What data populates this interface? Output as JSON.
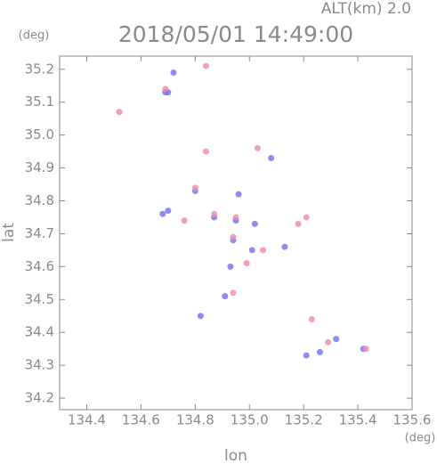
{
  "chart_data": {
    "type": "scatter",
    "title": "2018/05/01 14:49:00",
    "altitude_label": "ALT(km)  2.0",
    "y_unit": "(deg)",
    "x_unit": "(deg)",
    "x_label": "lon",
    "y_label": "lat",
    "xlim": [
      134.3,
      135.6
    ],
    "ylim": [
      34.165,
      35.24
    ],
    "xticks": [
      134.4,
      134.6,
      134.8,
      {
        "value": 135,
        "label": "135.0"
      },
      135.2,
      135.4,
      135.6
    ],
    "yticks": [
      34.2,
      34.3,
      34.4,
      34.5,
      34.6,
      34.7,
      34.8,
      34.9,
      {
        "value": 35,
        "label": "35.0"
      },
      35.1,
      35.2
    ],
    "series": [
      {
        "color": "#6f6ff0",
        "x": [
          134.69,
          134.72,
          134.7,
          134.8,
          134.96,
          134.7,
          134.87,
          134.95,
          135.02,
          134.94,
          135.01,
          135.13,
          134.93,
          134.91,
          134.82,
          135.21,
          135.26,
          135.32,
          135.42,
          135.08,
          134.68
        ],
        "values": [
          35.13,
          35.19,
          35.13,
          34.83,
          34.82,
          34.77,
          34.75,
          34.74,
          34.73,
          34.68,
          34.65,
          34.66,
          34.6,
          34.51,
          34.45,
          34.33,
          34.34,
          34.38,
          34.35,
          34.93,
          34.76
        ]
      },
      {
        "color": "#f08aa8",
        "x": [
          134.69,
          134.84,
          134.52,
          134.84,
          135.03,
          134.8,
          134.87,
          134.95,
          134.94,
          135.05,
          134.99,
          134.94,
          135.21,
          135.18,
          135.23,
          135.29,
          135.43,
          134.76
        ],
        "values": [
          35.14,
          35.21,
          35.07,
          34.95,
          34.96,
          34.84,
          34.76,
          34.75,
          34.69,
          34.65,
          34.61,
          34.52,
          34.75,
          34.73,
          34.44,
          34.37,
          34.35,
          34.74
        ]
      }
    ]
  }
}
